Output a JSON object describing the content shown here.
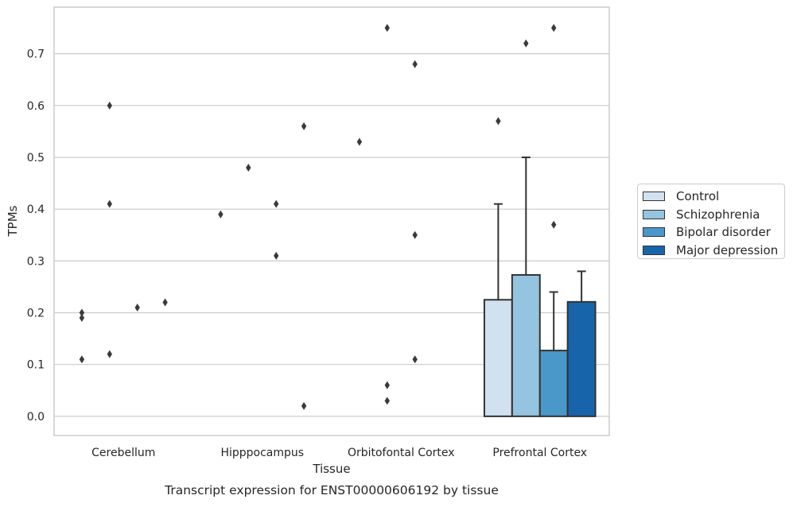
{
  "chart_data": {
    "type": "bar",
    "title": "",
    "caption": "Transcript expression for ENST00000606192 by tissue",
    "xlabel": "Tissue",
    "ylabel": "TPMs",
    "ylim": [
      -0.037,
      0.79
    ],
    "yticks": [
      0.0,
      0.1,
      0.2,
      0.3,
      0.4,
      0.5,
      0.6,
      0.7
    ],
    "ytick_labels": [
      "0.0",
      "0.1",
      "0.2",
      "0.3",
      "0.4",
      "0.5",
      "0.6",
      "0.7"
    ],
    "grid": "horizontal",
    "legend_position": "right",
    "categories": [
      "Cerebellum",
      "Hipppocampus",
      "Orbitofontal Cortex",
      "Prefrontal Cortex"
    ],
    "series": [
      {
        "name": "Control",
        "color": "#d1e1f0",
        "values": [
          0.0,
          0.0,
          0.0,
          0.225
        ],
        "error_upper": [
          null,
          null,
          null,
          0.41
        ]
      },
      {
        "name": "Schizophrenia",
        "color": "#94c4df",
        "values": [
          0.0,
          0.0,
          0.0,
          0.273
        ],
        "error_upper": [
          null,
          null,
          null,
          0.5
        ]
      },
      {
        "name": "Bipolar disorder",
        "color": "#4a98c9",
        "values": [
          0.0,
          0.0,
          0.0,
          0.127
        ],
        "error_upper": [
          null,
          null,
          null,
          0.24
        ]
      },
      {
        "name": "Major depression",
        "color": "#1764ab",
        "values": [
          0.0,
          0.0,
          0.0,
          0.221
        ],
        "error_upper": [
          null,
          null,
          null,
          0.28
        ]
      }
    ],
    "outliers": [
      {
        "category": "Cerebellum",
        "series": "Control",
        "values": [
          0.2,
          0.19,
          0.11
        ]
      },
      {
        "category": "Cerebellum",
        "series": "Schizophrenia",
        "values": [
          0.6,
          0.41,
          0.12
        ]
      },
      {
        "category": "Cerebellum",
        "series": "Bipolar disorder",
        "values": [
          0.21
        ]
      },
      {
        "category": "Cerebellum",
        "series": "Major depression",
        "values": [
          0.22
        ]
      },
      {
        "category": "Hipppocampus",
        "series": "Control",
        "values": [
          0.39
        ]
      },
      {
        "category": "Hipppocampus",
        "series": "Schizophrenia",
        "values": [
          0.48
        ]
      },
      {
        "category": "Hipppocampus",
        "series": "Bipolar disorder",
        "values": [
          0.41,
          0.31
        ]
      },
      {
        "category": "Hipppocampus",
        "series": "Major depression",
        "values": [
          0.56,
          0.02
        ]
      },
      {
        "category": "Orbitofontal Cortex",
        "series": "Control",
        "values": [
          0.53
        ]
      },
      {
        "category": "Orbitofontal Cortex",
        "series": "Schizophrenia",
        "values": [
          0.75,
          0.06,
          0.03
        ]
      },
      {
        "category": "Orbitofontal Cortex",
        "series": "Bipolar disorder",
        "values": [
          0.68,
          0.35,
          0.11
        ]
      },
      {
        "category": "Prefrontal Cortex",
        "series": "Control",
        "values": [
          0.57
        ]
      },
      {
        "category": "Prefrontal Cortex",
        "series": "Schizophrenia",
        "values": [
          0.72
        ]
      },
      {
        "category": "Prefrontal Cortex",
        "series": "Bipolar disorder",
        "values": [
          0.75,
          0.37
        ]
      }
    ]
  }
}
